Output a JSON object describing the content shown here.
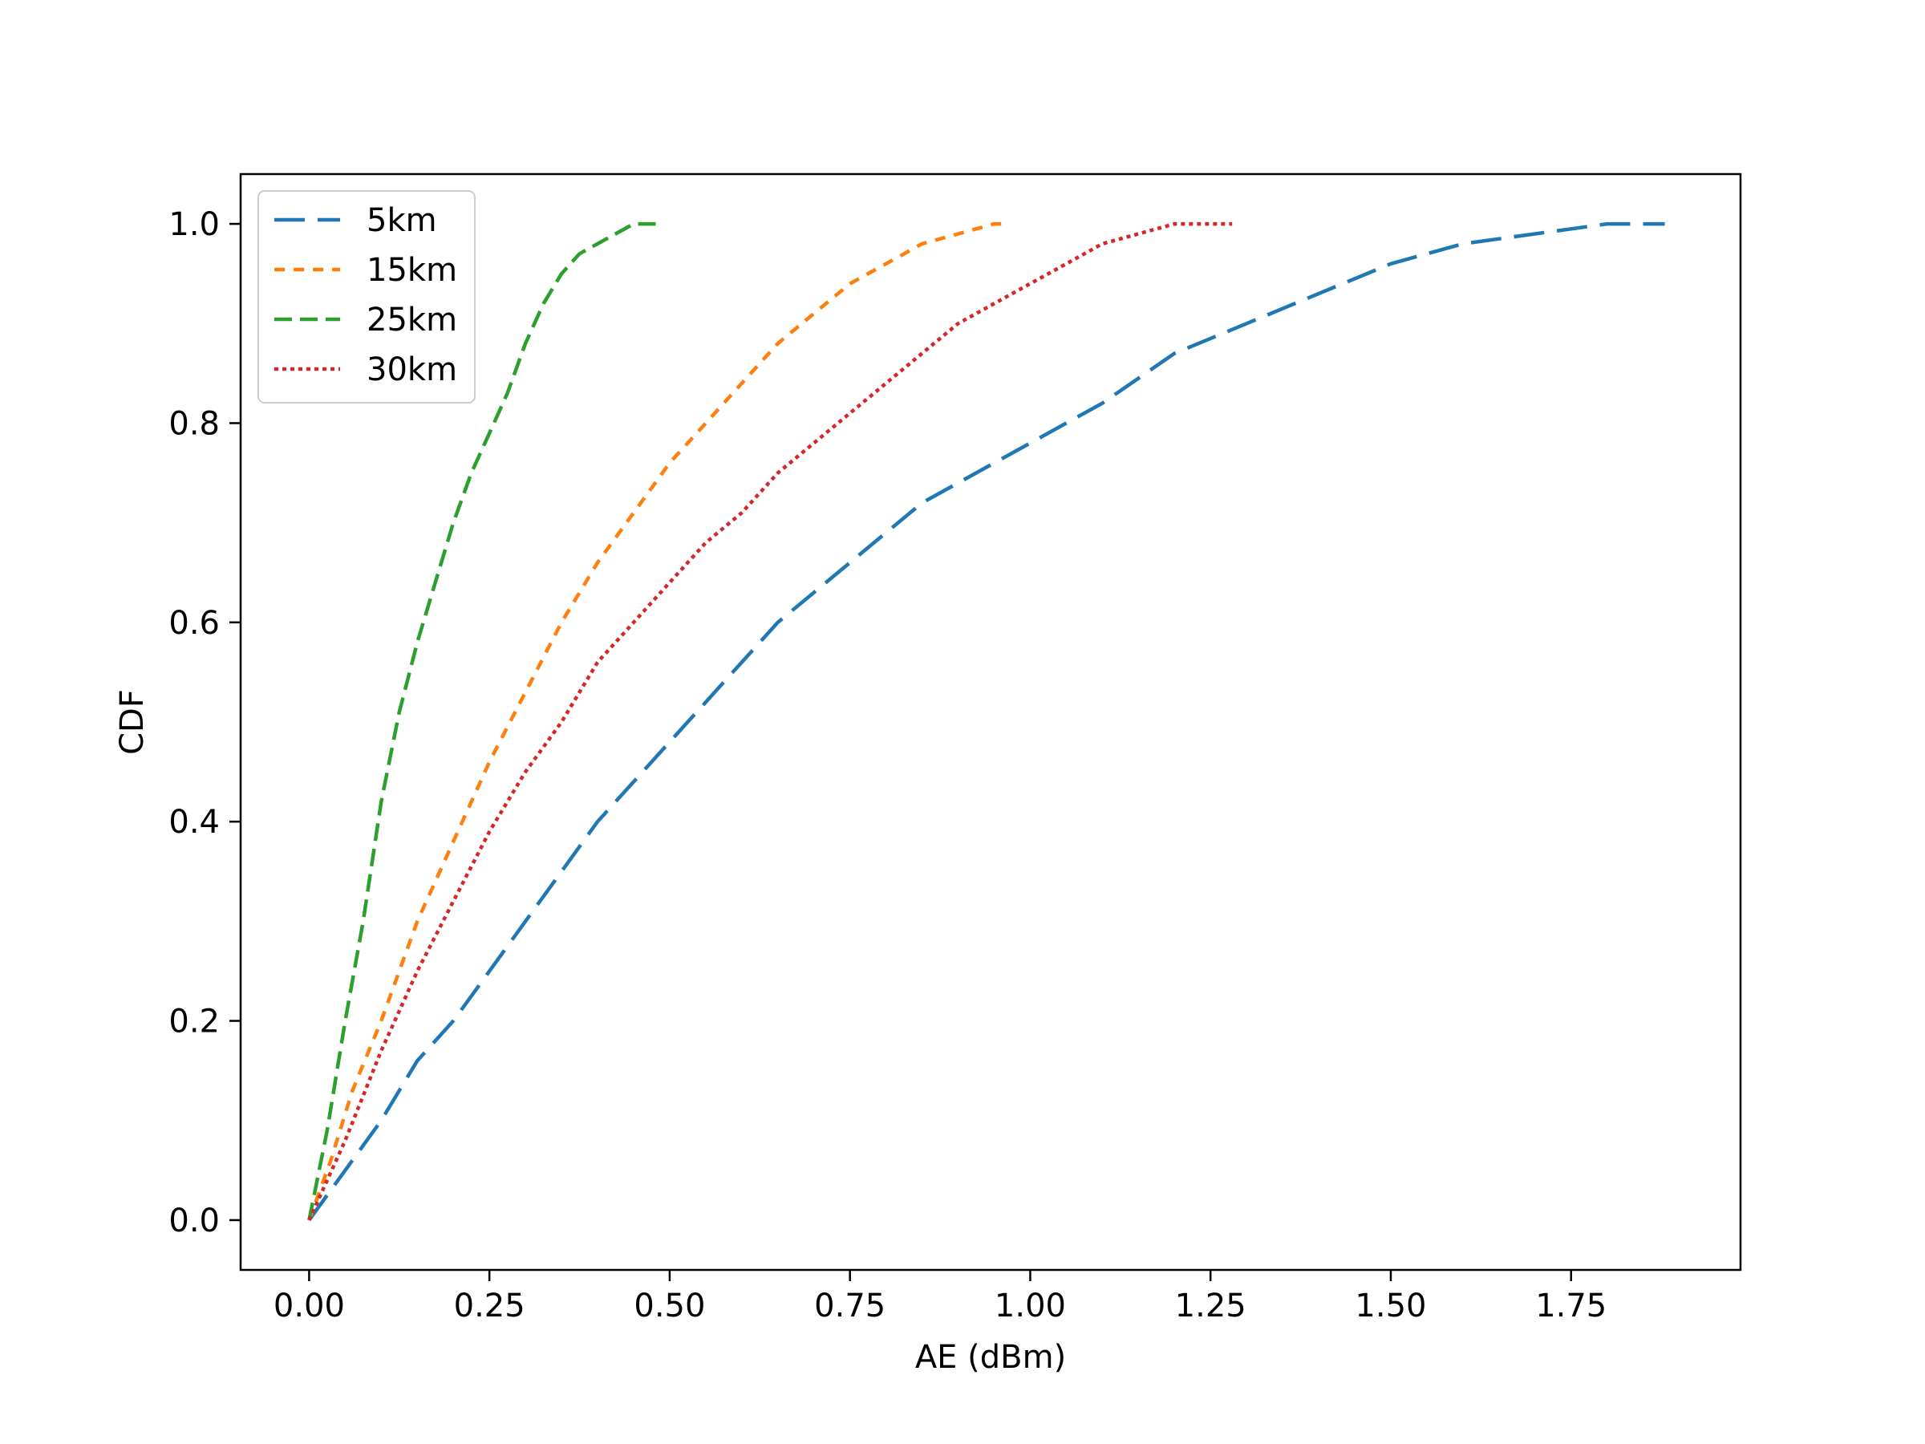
{
  "chart_data": {
    "type": "line",
    "title": "",
    "xlabel": "AE (dBm)",
    "ylabel": "CDF",
    "xlim": [
      -0.095,
      1.985
    ],
    "ylim": [
      -0.05,
      1.05
    ],
    "xticks": [
      "0.00",
      "0.25",
      "0.50",
      "0.75",
      "1.00",
      "1.25",
      "1.50",
      "1.75"
    ],
    "yticks": [
      "0.0",
      "0.2",
      "0.4",
      "0.6",
      "0.8",
      "1.0"
    ],
    "grid": false,
    "legend_position": "upper-left",
    "series": [
      {
        "name": "5km",
        "color": "#1f77b4",
        "dash": "long-dash",
        "x": [
          0.0,
          0.05,
          0.1,
          0.15,
          0.2,
          0.25,
          0.3,
          0.35,
          0.4,
          0.45,
          0.5,
          0.55,
          0.6,
          0.65,
          0.7,
          0.75,
          0.8,
          0.85,
          0.9,
          1.0,
          1.1,
          1.2,
          1.3,
          1.4,
          1.5,
          1.6,
          1.7,
          1.8,
          1.88
        ],
        "y": [
          0.0,
          0.05,
          0.1,
          0.16,
          0.2,
          0.25,
          0.3,
          0.35,
          0.4,
          0.44,
          0.48,
          0.52,
          0.56,
          0.6,
          0.63,
          0.66,
          0.69,
          0.72,
          0.74,
          0.78,
          0.82,
          0.87,
          0.9,
          0.93,
          0.96,
          0.98,
          0.99,
          1.0,
          1.0
        ]
      },
      {
        "name": "15km",
        "color": "#ff7f0e",
        "dash": "short-dash",
        "x": [
          0.0,
          0.03,
          0.06,
          0.1,
          0.15,
          0.2,
          0.25,
          0.3,
          0.35,
          0.4,
          0.45,
          0.5,
          0.55,
          0.6,
          0.65,
          0.7,
          0.75,
          0.8,
          0.85,
          0.9,
          0.95,
          0.97
        ],
        "y": [
          0.0,
          0.06,
          0.13,
          0.2,
          0.3,
          0.38,
          0.46,
          0.53,
          0.6,
          0.66,
          0.71,
          0.76,
          0.8,
          0.84,
          0.88,
          0.91,
          0.94,
          0.96,
          0.98,
          0.99,
          1.0,
          1.0
        ]
      },
      {
        "name": "25km",
        "color": "#2ca02c",
        "dash": "dash",
        "x": [
          0.0,
          0.025,
          0.05,
          0.075,
          0.1,
          0.125,
          0.15,
          0.175,
          0.2,
          0.225,
          0.25,
          0.275,
          0.3,
          0.325,
          0.35,
          0.375,
          0.4,
          0.425,
          0.45,
          0.475,
          0.49
        ],
        "y": [
          0.0,
          0.09,
          0.2,
          0.3,
          0.42,
          0.51,
          0.58,
          0.64,
          0.7,
          0.75,
          0.79,
          0.83,
          0.88,
          0.92,
          0.95,
          0.97,
          0.98,
          0.99,
          1.0,
          1.0,
          1.0
        ]
      },
      {
        "name": "30km",
        "color": "#d62728",
        "dash": "dotted",
        "x": [
          0.0,
          0.05,
          0.1,
          0.15,
          0.2,
          0.25,
          0.3,
          0.35,
          0.4,
          0.45,
          0.5,
          0.55,
          0.6,
          0.65,
          0.7,
          0.75,
          0.8,
          0.85,
          0.9,
          0.95,
          1.0,
          1.05,
          1.1,
          1.15,
          1.2,
          1.25,
          1.28
        ],
        "y": [
          0.0,
          0.08,
          0.17,
          0.25,
          0.32,
          0.39,
          0.45,
          0.5,
          0.56,
          0.6,
          0.64,
          0.68,
          0.71,
          0.75,
          0.78,
          0.81,
          0.84,
          0.87,
          0.9,
          0.92,
          0.94,
          0.96,
          0.98,
          0.99,
          1.0,
          1.0,
          1.0
        ]
      }
    ]
  }
}
